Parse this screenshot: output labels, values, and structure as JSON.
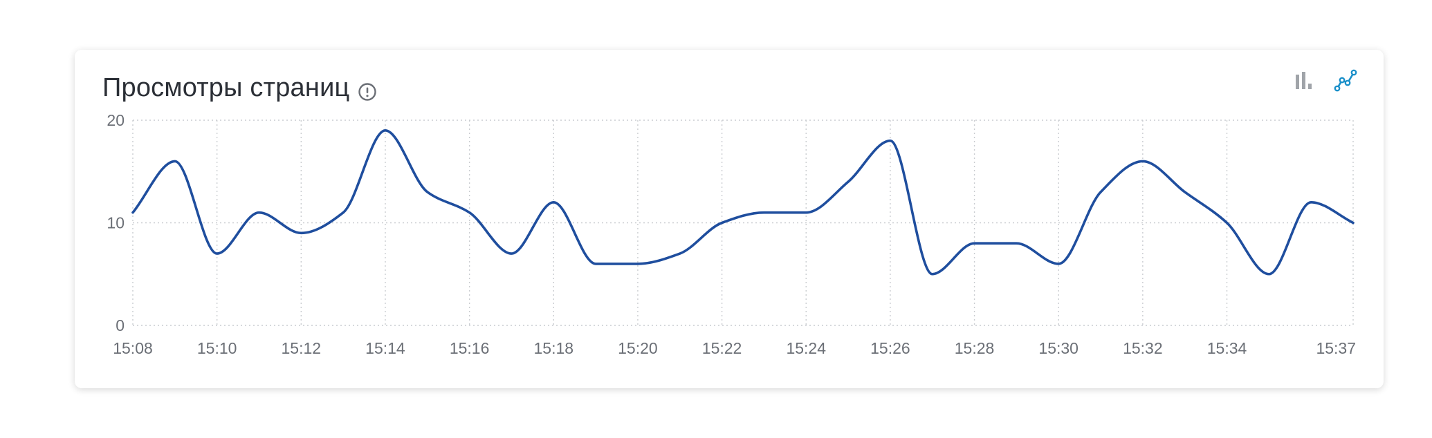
{
  "title": "Просмотры страниц",
  "icons": {
    "info": "info-circle-icon",
    "bar_chart": "bar-chart-icon",
    "line_chart": "line-chart-icon"
  },
  "colors": {
    "line": "#1f4e9e",
    "active_icon": "#1a8fc9",
    "inactive_icon": "#a0a4a9"
  },
  "chart_data": {
    "type": "line",
    "title": "Просмотры страниц",
    "x": [
      "15:08",
      "15:09",
      "15:10",
      "15:11",
      "15:12",
      "15:13",
      "15:14",
      "15:15",
      "15:16",
      "15:17",
      "15:18",
      "15:19",
      "15:20",
      "15:21",
      "15:22",
      "15:23",
      "15:24",
      "15:25",
      "15:26",
      "15:27",
      "15:28",
      "15:29",
      "15:30",
      "15:31",
      "15:32",
      "15:33",
      "15:34",
      "15:35",
      "15:36",
      "15:37"
    ],
    "x_tick_labels": [
      "15:08",
      "15:10",
      "15:12",
      "15:14",
      "15:16",
      "15:18",
      "15:20",
      "15:22",
      "15:24",
      "15:26",
      "15:28",
      "15:30",
      "15:32",
      "15:34",
      "15:37"
    ],
    "y_tick_labels": [
      "0",
      "10",
      "20"
    ],
    "series": [
      {
        "values": [
          11,
          16,
          7,
          11,
          9,
          11,
          19,
          13,
          11,
          7,
          12,
          6,
          6,
          7,
          10,
          11,
          11,
          14,
          18,
          5,
          8,
          8,
          6,
          13,
          16,
          13,
          10,
          5,
          12,
          10
        ]
      }
    ],
    "ylim": [
      0,
      20
    ],
    "grid": true,
    "xlabel": "",
    "ylabel": ""
  }
}
